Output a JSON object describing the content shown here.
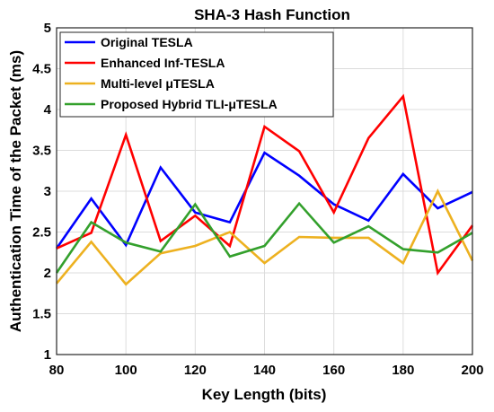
{
  "chart_data": {
    "type": "line",
    "title": "SHA-3 Hash Function",
    "xlabel": "Key Length (bits)",
    "ylabel": "Authentication Time of the Packet (ms)",
    "xlim": [
      80,
      200
    ],
    "ylim": [
      1,
      5
    ],
    "xticks": [
      80,
      100,
      120,
      140,
      160,
      180,
      200
    ],
    "yticks": [
      1,
      1.5,
      2,
      2.5,
      3,
      3.5,
      4,
      4.5,
      5
    ],
    "grid": true,
    "legend_position": "top-left",
    "x": [
      80,
      90,
      100,
      110,
      120,
      130,
      140,
      150,
      160,
      170,
      180,
      190,
      200
    ],
    "series": [
      {
        "name": "Original TESLA",
        "color": "#0000ff",
        "values": [
          2.3,
          2.91,
          2.34,
          3.29,
          2.74,
          2.62,
          3.47,
          3.19,
          2.84,
          2.64,
          3.21,
          2.79,
          2.99
        ]
      },
      {
        "name": "Enhanced Inf-TESLA",
        "color": "#ff0000",
        "values": [
          2.3,
          2.49,
          3.69,
          2.39,
          2.7,
          2.33,
          3.79,
          3.49,
          2.74,
          3.65,
          4.16,
          2.0,
          2.58
        ]
      },
      {
        "name": "Multi-level μTESLA",
        "color": "#edb120",
        "values": [
          1.87,
          2.38,
          1.86,
          2.24,
          2.33,
          2.5,
          2.12,
          2.44,
          2.43,
          2.43,
          2.12,
          3.0,
          2.15
        ]
      },
      {
        "name": "Proposed Hybrid TLI-μTESLA",
        "color": "#33a02c",
        "values": [
          2.0,
          2.62,
          2.37,
          2.26,
          2.84,
          2.2,
          2.33,
          2.85,
          2.37,
          2.57,
          2.29,
          2.25,
          2.49
        ]
      }
    ]
  }
}
